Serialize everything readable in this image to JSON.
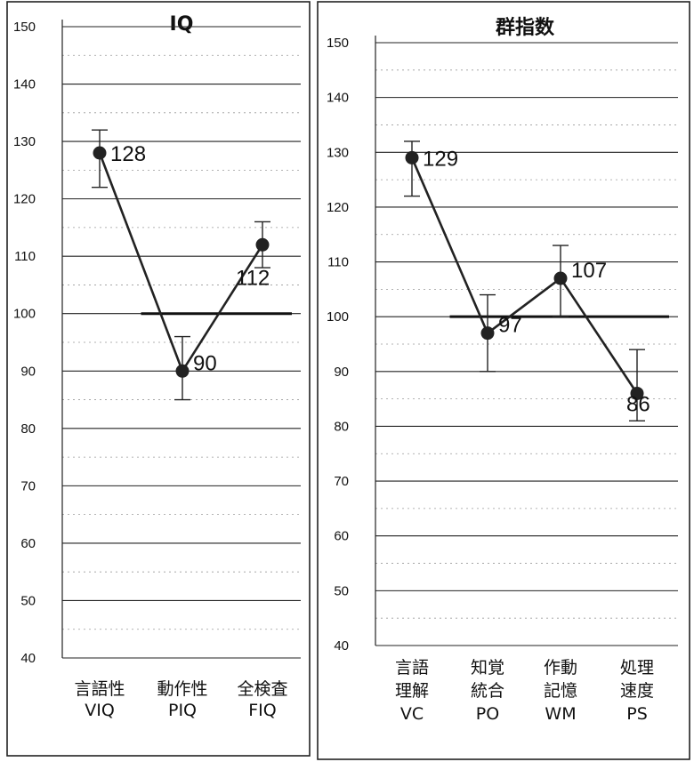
{
  "chart_data": [
    {
      "type": "line",
      "title": "IQ",
      "ylim": [
        40,
        150
      ],
      "yticks": [
        150,
        140,
        130,
        120,
        110,
        100,
        90,
        80,
        70,
        60,
        50,
        40
      ],
      "reference_line": 100,
      "categories": [
        {
          "line1": "言語性",
          "line2": "VIQ"
        },
        {
          "line1": "動作性",
          "line2": "PIQ"
        },
        {
          "line1": "全検査",
          "line2": "FIQ"
        }
      ],
      "values": [
        128,
        90,
        112
      ],
      "data_labels": [
        "128",
        "90",
        "112"
      ],
      "error_low": [
        122,
        85,
        108
      ],
      "error_high": [
        132,
        96,
        116
      ],
      "grid": true
    },
    {
      "type": "line",
      "title": "群指数",
      "ylim": [
        40,
        150
      ],
      "yticks": [
        150,
        140,
        130,
        120,
        110,
        100,
        90,
        80,
        70,
        60,
        50,
        40
      ],
      "reference_line": 100,
      "categories": [
        {
          "line1": "言語",
          "line2": "理解",
          "line3": "VC"
        },
        {
          "line1": "知覚",
          "line2": "統合",
          "line3": "PO"
        },
        {
          "line1": "作動",
          "line2": "記憶",
          "line3": "WM"
        },
        {
          "line1": "処理",
          "line2": "速度",
          "line3": "PS"
        }
      ],
      "values": [
        129,
        97,
        107,
        86
      ],
      "data_labels": [
        "129",
        "97",
        "107",
        "86"
      ],
      "error_low": [
        122,
        90,
        100,
        81
      ],
      "error_high": [
        132,
        104,
        113,
        94
      ],
      "grid": true
    }
  ]
}
